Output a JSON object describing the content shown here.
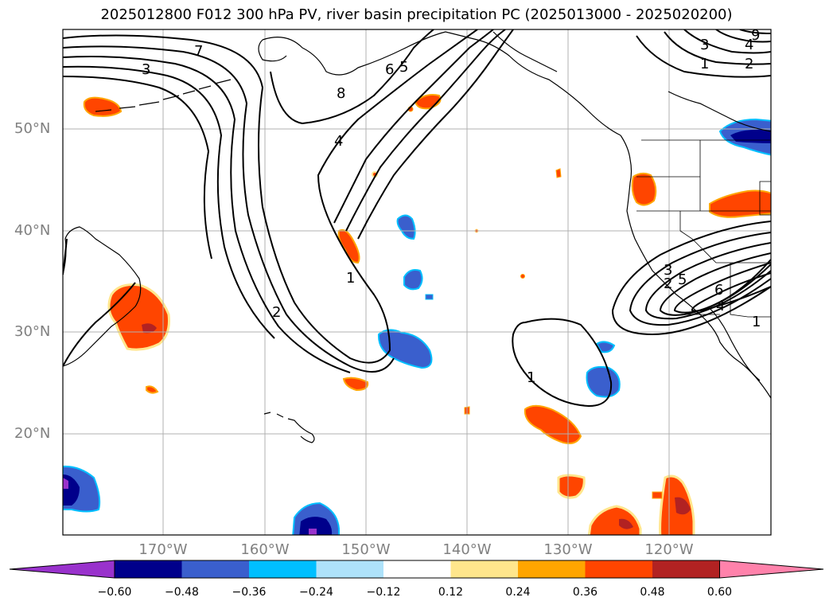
{
  "title": "2025012800 F012 300 hPa PV, river basin precipitation PC (2025013000 - 2025020200)",
  "lat_labels": [
    "50°N",
    "40°N",
    "30°N",
    "20°N"
  ],
  "lon_labels": [
    "170°W",
    "160°W",
    "150°W",
    "140°W",
    "130°W",
    "120°W"
  ],
  "colorbar": {
    "tick_labels": [
      "−0.60",
      "−0.48",
      "−0.36",
      "−0.24",
      "−0.12",
      "0.12",
      "0.24",
      "0.36",
      "0.48",
      "0.60"
    ],
    "ticks": [
      -0.6,
      -0.48,
      -0.36,
      -0.24,
      -0.12,
      0.12,
      0.24,
      0.36,
      0.48,
      0.6
    ],
    "colors": [
      "#9932CC",
      "#00008B",
      "#3A5FCD",
      "#00BFFF",
      "#AEE2FA",
      "#FFFFFF",
      "#FFE68C",
      "#FFA500",
      "#FF4500",
      "#B22222",
      "#FF82AB"
    ],
    "extend": "both"
  },
  "contour_labels": [
    "7",
    "3",
    "8",
    "6",
    "5",
    "4",
    "1",
    "2",
    "3",
    "1",
    "2",
    "9",
    "4",
    "3",
    "2",
    "5",
    "6",
    "1",
    "1",
    "4"
  ],
  "map_extent": {
    "lon": [
      -180,
      -110
    ],
    "lat": [
      10,
      60
    ]
  },
  "grid": true
}
